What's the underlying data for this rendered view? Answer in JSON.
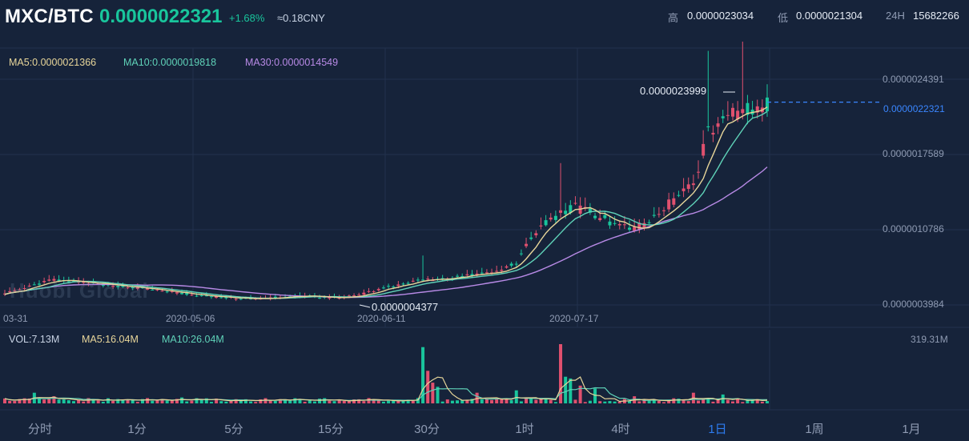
{
  "header": {
    "pair": "MXC/BTC",
    "last_price": "0.0000022321",
    "change": "+1.68%",
    "cny": "≈0.18CNY",
    "high_label": "高",
    "high_value": "0.0000023034",
    "low_label": "低",
    "low_value": "0.0000021304",
    "vol_label": "24H",
    "vol_value": "15682266"
  },
  "colors": {
    "up": "#19c59c",
    "down": "#e0506e",
    "ma5": "#e8d69a",
    "ma10": "#5fd2b8",
    "ma30": "#b88ae6",
    "accent": "#2d7cf0"
  },
  "watermark": "Huobi Global",
  "chart_data": [
    {
      "type": "candlestick",
      "legend": [
        {
          "key": "ma5",
          "text": "MA5:0.0000021366"
        },
        {
          "key": "ma10",
          "text": "MA10:0.0000019818"
        },
        {
          "key": "ma30",
          "text": "MA30:0.0000014549"
        }
      ],
      "y_ticks": [
        "0.0000024391",
        "0.0000017589",
        "0.0000010786",
        "0.0000003984"
      ],
      "y_tick_values": [
        2.4391e-06,
        1.7589e-06,
        1.0786e-06,
        3.984e-07
      ],
      "x_ticks": [
        {
          "label": "03-31",
          "index": 0
        },
        {
          "label": "2020-05-06",
          "index": 36
        },
        {
          "label": "2020-06-11",
          "index": 72
        },
        {
          "label": "2020-07-17",
          "index": 108
        }
      ],
      "max_label": "0.0000023999",
      "min_label": "0.0000004377",
      "current_label": "0.0000022321",
      "current_value": 2.2321e-06,
      "key_points": [
        [
          0,
          5e-07
        ],
        [
          10,
          6.3e-07
        ],
        [
          20,
          5.8e-07
        ],
        [
          30,
          5.4e-07
        ],
        [
          40,
          4.8e-07
        ],
        [
          50,
          4.5e-07
        ],
        [
          60,
          4.8e-07
        ],
        [
          68,
          4.6e-07
        ],
        [
          72,
          4.9e-07
        ],
        [
          78,
          5.6e-07
        ],
        [
          84,
          6.2e-07
        ],
        [
          92,
          6.5e-07
        ],
        [
          100,
          7e-07
        ],
        [
          104,
          7.8e-07
        ],
        [
          108,
          1.06e-06
        ],
        [
          112,
          1.2e-06
        ],
        [
          116,
          1.28e-06
        ],
        [
          120,
          1.22e-06
        ],
        [
          124,
          1.12e-06
        ],
        [
          128,
          1.08e-06
        ],
        [
          132,
          1.18e-06
        ],
        [
          136,
          1.35e-06
        ],
        [
          140,
          1.5e-06
        ],
        [
          143,
          1.95e-06
        ],
        [
          146,
          2.1e-06
        ],
        [
          150,
          2.15e-06
        ],
        [
          155,
          2.2e-06
        ]
      ]
    },
    {
      "type": "bar",
      "legend": [
        {
          "key": "vol",
          "text": "VOL:7.13M"
        },
        {
          "key": "ma5",
          "text": "MA5:16.04M"
        },
        {
          "key": "ma10",
          "text": "MA10:26.04M"
        }
      ],
      "y_max_label": "319.31M",
      "spikes": [
        {
          "index": 6,
          "v": 0.18
        },
        {
          "index": 10,
          "v": 0.12
        },
        {
          "index": 36,
          "v": 0.1
        },
        {
          "index": 64,
          "v": 0.08
        },
        {
          "index": 85,
          "v": 0.95
        },
        {
          "index": 86,
          "v": 0.55
        },
        {
          "index": 87,
          "v": 0.35
        },
        {
          "index": 88,
          "v": 0.28
        },
        {
          "index": 96,
          "v": 0.18
        },
        {
          "index": 104,
          "v": 0.22
        },
        {
          "index": 113,
          "v": 1.0
        },
        {
          "index": 114,
          "v": 0.45
        },
        {
          "index": 115,
          "v": 0.42
        },
        {
          "index": 117,
          "v": 0.3
        },
        {
          "index": 120,
          "v": 0.25
        },
        {
          "index": 128,
          "v": 0.12
        },
        {
          "index": 140,
          "v": 0.18
        },
        {
          "index": 146,
          "v": 0.15
        }
      ]
    }
  ],
  "tabs": [
    {
      "label": "分时",
      "active": false
    },
    {
      "label": "1分",
      "active": false
    },
    {
      "label": "5分",
      "active": false
    },
    {
      "label": "15分",
      "active": false
    },
    {
      "label": "30分",
      "active": false
    },
    {
      "label": "1时",
      "active": false
    },
    {
      "label": "4时",
      "active": false
    },
    {
      "label": "1日",
      "active": true
    },
    {
      "label": "1周",
      "active": false
    },
    {
      "label": "1月",
      "active": false
    }
  ]
}
